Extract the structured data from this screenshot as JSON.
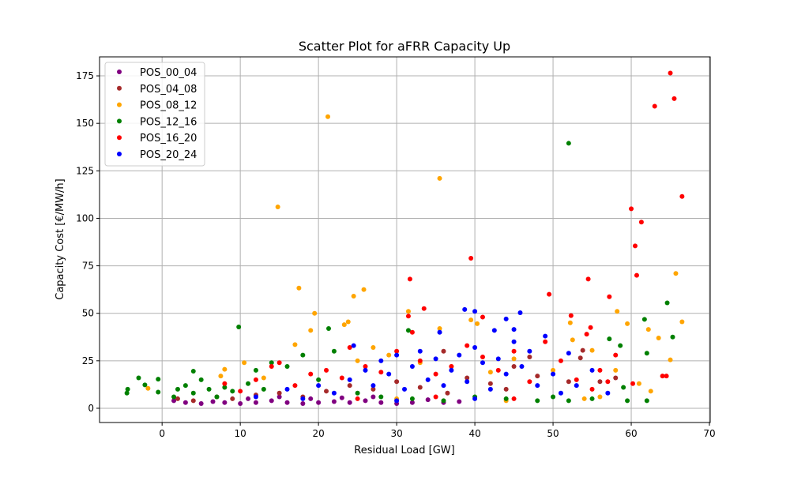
{
  "chart_data": {
    "type": "scatter",
    "title": "Scatter Plot for aFRR Capacity Up",
    "xlabel": "Residual Load [GW]",
    "ylabel": "Capacity Cost [€/MW/h]",
    "xlim": [
      -8,
      70.1
    ],
    "ylim": [
      -7.5,
      185
    ],
    "xticks": [
      0,
      10,
      20,
      30,
      40,
      50,
      60,
      70
    ],
    "yticks": [
      0,
      25,
      50,
      75,
      100,
      125,
      150,
      175
    ],
    "grid": true,
    "legend_position": "top-left",
    "series": [
      {
        "name": "POS_00_04",
        "color": "#800080",
        "points": [
          [
            1.5,
            4
          ],
          [
            3,
            3
          ],
          [
            5,
            2.5
          ],
          [
            6.5,
            3.5
          ],
          [
            8,
            3
          ],
          [
            10,
            2.5
          ],
          [
            12,
            3
          ],
          [
            14,
            4
          ],
          [
            16,
            3
          ],
          [
            18,
            2.5
          ],
          [
            20,
            3
          ],
          [
            22,
            3.5
          ],
          [
            24,
            3
          ],
          [
            26,
            4
          ],
          [
            28,
            3
          ],
          [
            30,
            2.5
          ],
          [
            32,
            3
          ],
          [
            34,
            4.5
          ],
          [
            36,
            3
          ],
          [
            38,
            3.5
          ],
          [
            11,
            5
          ],
          [
            15,
            6
          ],
          [
            19,
            5
          ],
          [
            23,
            5.5
          ],
          [
            27,
            6
          ]
        ]
      },
      {
        "name": "POS_04_08",
        "color": "#a52a2a",
        "points": [
          [
            2,
            5
          ],
          [
            4,
            4
          ],
          [
            7,
            6
          ],
          [
            9,
            5
          ],
          [
            12,
            7
          ],
          [
            15,
            8
          ],
          [
            18,
            6
          ],
          [
            21,
            9
          ],
          [
            24,
            12
          ],
          [
            27,
            10
          ],
          [
            30,
            14
          ],
          [
            33,
            11
          ],
          [
            36,
            30
          ],
          [
            36.5,
            8
          ],
          [
            39,
            16
          ],
          [
            42,
            13
          ],
          [
            45,
            22
          ],
          [
            48,
            17
          ],
          [
            52,
            14
          ],
          [
            53.5,
            26.5
          ],
          [
            53.8,
            30.5
          ],
          [
            56,
            14
          ],
          [
            58,
            16
          ],
          [
            47,
            27
          ],
          [
            44,
            10
          ]
        ]
      },
      {
        "name": "POS_08_12",
        "color": "#ffa500",
        "points": [
          [
            21.2,
            153.5
          ],
          [
            35.5,
            121
          ],
          [
            14.8,
            106
          ],
          [
            17.5,
            63.3
          ],
          [
            24.5,
            59
          ],
          [
            25.8,
            62.5
          ],
          [
            65.7,
            71
          ],
          [
            58.2,
            51
          ],
          [
            66.5,
            45.5
          ],
          [
            59.5,
            44.5
          ],
          [
            19.5,
            50
          ],
          [
            19,
            41
          ],
          [
            23.3,
            44
          ],
          [
            23.8,
            45.5
          ],
          [
            62.2,
            41.5
          ],
          [
            39.5,
            46.5
          ],
          [
            31.5,
            51
          ],
          [
            35.5,
            42
          ],
          [
            40.3,
            44.5
          ],
          [
            -1.8,
            10.5
          ],
          [
            7.5,
            17
          ],
          [
            8,
            20.5
          ],
          [
            10.5,
            24
          ],
          [
            13,
            16
          ],
          [
            17,
            33.5
          ],
          [
            25,
            25
          ],
          [
            27,
            32
          ],
          [
            29,
            28
          ],
          [
            33,
            24
          ],
          [
            37,
            22
          ],
          [
            42,
            19
          ],
          [
            45,
            26
          ],
          [
            50,
            20
          ],
          [
            52.2,
            45
          ],
          [
            52.5,
            36
          ],
          [
            55,
            30.5
          ],
          [
            58,
            20
          ],
          [
            61,
            13
          ],
          [
            62.5,
            9
          ],
          [
            63.5,
            37
          ],
          [
            65,
            25.5
          ],
          [
            54,
            5
          ],
          [
            56,
            6
          ],
          [
            44,
            4
          ],
          [
            30,
            5
          ]
        ]
      },
      {
        "name": "POS_12_16",
        "color": "#008000",
        "points": [
          [
            52,
            139.5
          ],
          [
            64.6,
            55.5
          ],
          [
            61.7,
            46.8
          ],
          [
            9.8,
            42.8
          ],
          [
            31.5,
            41
          ],
          [
            21.3,
            42
          ],
          [
            57.2,
            36.5
          ],
          [
            58.6,
            33
          ],
          [
            62,
            29
          ],
          [
            65.3,
            37.5
          ],
          [
            -4.5,
            8
          ],
          [
            -4.4,
            10
          ],
          [
            -3,
            16
          ],
          [
            -2.2,
            12.3
          ],
          [
            -0.5,
            15.3
          ],
          [
            -0.5,
            8.5
          ],
          [
            1.5,
            6
          ],
          [
            2,
            10
          ],
          [
            3,
            12
          ],
          [
            4,
            8
          ],
          [
            4,
            19.5
          ],
          [
            5,
            15
          ],
          [
            6,
            10
          ],
          [
            7,
            6
          ],
          [
            8,
            11
          ],
          [
            9,
            9
          ],
          [
            11,
            13
          ],
          [
            12,
            20
          ],
          [
            13,
            10
          ],
          [
            14,
            24
          ],
          [
            16,
            22
          ],
          [
            18,
            28
          ],
          [
            20,
            15
          ],
          [
            22,
            30
          ],
          [
            25,
            8
          ],
          [
            28,
            6
          ],
          [
            32,
            5
          ],
          [
            36,
            4
          ],
          [
            40,
            6
          ],
          [
            44,
            5
          ],
          [
            48,
            4
          ],
          [
            52,
            4
          ],
          [
            55,
            5
          ],
          [
            59,
            11
          ],
          [
            59.5,
            4
          ],
          [
            62,
            4
          ],
          [
            50,
            6
          ]
        ]
      },
      {
        "name": "POS_16_20",
        "color": "#ff0000",
        "points": [
          [
            65,
            176.5
          ],
          [
            65.5,
            163
          ],
          [
            63,
            159
          ],
          [
            60,
            105
          ],
          [
            66.5,
            111.5
          ],
          [
            61.3,
            98
          ],
          [
            60.5,
            85.5
          ],
          [
            60.7,
            70
          ],
          [
            54.5,
            68
          ],
          [
            57.2,
            58.7
          ],
          [
            49.5,
            60
          ],
          [
            39.5,
            79
          ],
          [
            31.7,
            68
          ],
          [
            33.5,
            52.5
          ],
          [
            31.5,
            48.5
          ],
          [
            41,
            48
          ],
          [
            52.3,
            48.8
          ],
          [
            54.8,
            42.5
          ],
          [
            54.3,
            39
          ],
          [
            64,
            17
          ],
          [
            64.5,
            17
          ],
          [
            58,
            28
          ],
          [
            60.2,
            13
          ],
          [
            57,
            14
          ],
          [
            8,
            13
          ],
          [
            10,
            9
          ],
          [
            12,
            15
          ],
          [
            14,
            22
          ],
          [
            15,
            24
          ],
          [
            17,
            12
          ],
          [
            19,
            18
          ],
          [
            21,
            20
          ],
          [
            23,
            16
          ],
          [
            24,
            32
          ],
          [
            26,
            22
          ],
          [
            28,
            19
          ],
          [
            30,
            30
          ],
          [
            32,
            40
          ],
          [
            33,
            25
          ],
          [
            35,
            18
          ],
          [
            37,
            22
          ],
          [
            39,
            33
          ],
          [
            41,
            27
          ],
          [
            43,
            20
          ],
          [
            45,
            30
          ],
          [
            47,
            14
          ],
          [
            49,
            35
          ],
          [
            51,
            25
          ],
          [
            53,
            15
          ],
          [
            55,
            10
          ],
          [
            56,
            20
          ],
          [
            25,
            5
          ],
          [
            35,
            6
          ],
          [
            45,
            5
          ]
        ]
      },
      {
        "name": "POS_20_24",
        "color": "#0000ff",
        "points": [
          [
            38.7,
            52
          ],
          [
            40,
            51
          ],
          [
            45.8,
            50.3
          ],
          [
            35.5,
            40
          ],
          [
            42.5,
            41
          ],
          [
            45,
            41.5
          ],
          [
            44,
            47
          ],
          [
            12,
            6
          ],
          [
            16,
            10
          ],
          [
            18,
            5
          ],
          [
            20,
            12
          ],
          [
            22,
            8
          ],
          [
            24,
            15
          ],
          [
            24.5,
            33
          ],
          [
            26,
            20
          ],
          [
            27,
            12
          ],
          [
            28,
            25
          ],
          [
            29,
            18
          ],
          [
            30,
            28
          ],
          [
            31,
            10
          ],
          [
            32,
            22
          ],
          [
            33,
            30
          ],
          [
            34,
            15
          ],
          [
            35,
            26
          ],
          [
            36,
            12
          ],
          [
            37,
            20
          ],
          [
            38,
            28
          ],
          [
            39,
            14
          ],
          [
            40,
            32
          ],
          [
            41,
            24
          ],
          [
            42,
            10
          ],
          [
            43,
            26
          ],
          [
            44,
            18
          ],
          [
            45,
            35
          ],
          [
            46,
            22
          ],
          [
            47,
            30
          ],
          [
            48,
            12
          ],
          [
            49,
            38
          ],
          [
            50,
            18
          ],
          [
            51,
            8
          ],
          [
            52,
            29
          ],
          [
            53,
            12
          ],
          [
            55,
            20
          ],
          [
            57,
            8
          ],
          [
            30,
            4
          ],
          [
            40,
            5
          ]
        ]
      }
    ]
  }
}
